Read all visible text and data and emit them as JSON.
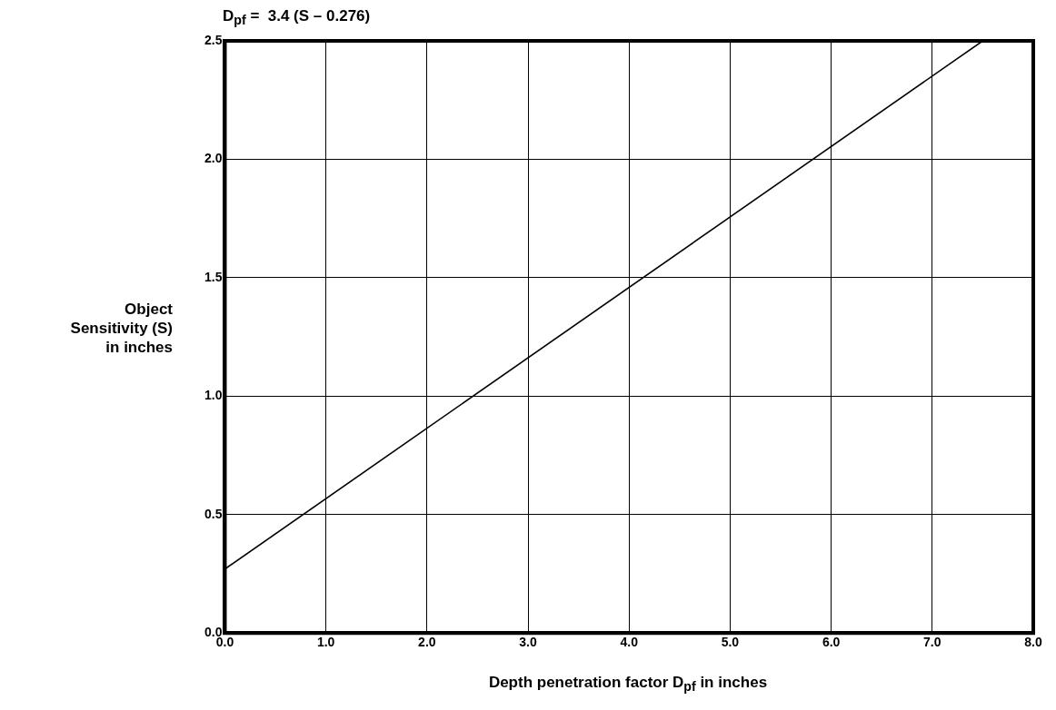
{
  "chart_data": {
    "type": "line",
    "title": "D$_{pf}$ =  3.4 (S – 0.276)",
    "xlabel": "Depth penetration factor D$_{pf}$ in inches",
    "ylabel": "Object Sensitivity (S) in inches",
    "series": [
      {
        "color": "#000000",
        "x": [
          0,
          7.5
        ],
        "values": [
          0.27,
          2.5
        ]
      }
    ],
    "xlim": [
      0,
      8
    ],
    "ylim": [
      0,
      2.5
    ],
    "xticks": [
      {
        "value": 0,
        "label": "0.0"
      },
      {
        "value": 1,
        "label": "1.0"
      },
      {
        "value": 2,
        "label": "2.0"
      },
      {
        "value": 3,
        "label": "3.0"
      },
      {
        "value": 4,
        "label": "4.0"
      },
      {
        "value": 5,
        "label": "5.0"
      },
      {
        "value": 6,
        "label": "6.0"
      },
      {
        "value": 7,
        "label": "7.0"
      },
      {
        "value": 8,
        "label": "8.0"
      }
    ],
    "yticks": [
      {
        "value": 0,
        "label": "0.0"
      },
      {
        "value": 0.5,
        "label": "0.5"
      },
      {
        "value": 1,
        "label": "1.0"
      },
      {
        "value": 1.5,
        "label": "1.5"
      },
      {
        "value": 2,
        "label": "2.0"
      },
      {
        "value": 2.5,
        "label": "2.5"
      }
    ],
    "grid": true,
    "legend": false,
    "marker": "none",
    "line_style": "solid"
  }
}
